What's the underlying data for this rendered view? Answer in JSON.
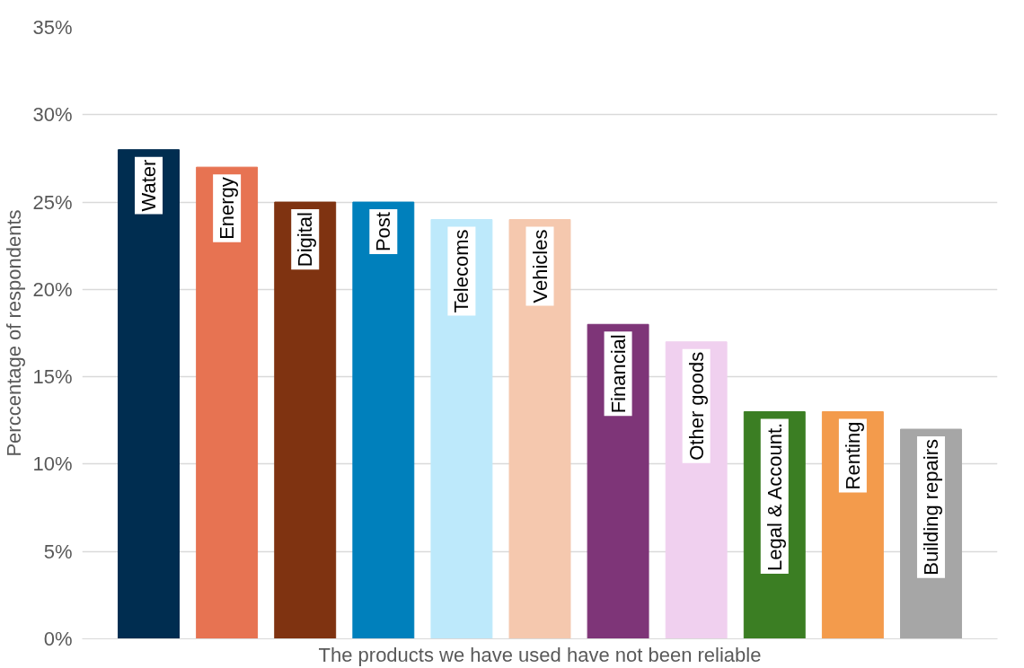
{
  "chart_data": {
    "type": "bar",
    "xlabel": "The products we have used have not been reliable",
    "ylabel": "Perccentage of respondents",
    "categories": [
      "Water",
      "Energy",
      "Digital",
      "Post",
      "Telecoms",
      "Vehicles",
      "Financial",
      "Other goods",
      "Legal & Account.",
      "Renting",
      "Building repairs"
    ],
    "values": [
      28,
      27,
      25,
      25,
      24,
      24,
      18,
      17,
      13,
      13,
      12
    ],
    "colors": [
      "#002d50",
      "#e77352",
      "#7f3311",
      "#0080bc",
      "#bde9fb",
      "#f5c8ae",
      "#7e3578",
      "#f0d0ef",
      "#3b7e23",
      "#f39b4c",
      "#a6a6a6"
    ],
    "ylim": [
      0,
      35
    ],
    "yticks": [
      {
        "value": 0,
        "label": "0%"
      },
      {
        "value": 5,
        "label": "5%"
      },
      {
        "value": 10,
        "label": "10%"
      },
      {
        "value": 15,
        "label": "15%"
      },
      {
        "value": 20,
        "label": "20%"
      },
      {
        "value": 25,
        "label": "25%"
      },
      {
        "value": 30,
        "label": "30%"
      },
      {
        "value": 35,
        "label": "35%"
      }
    ],
    "grid": "y"
  }
}
